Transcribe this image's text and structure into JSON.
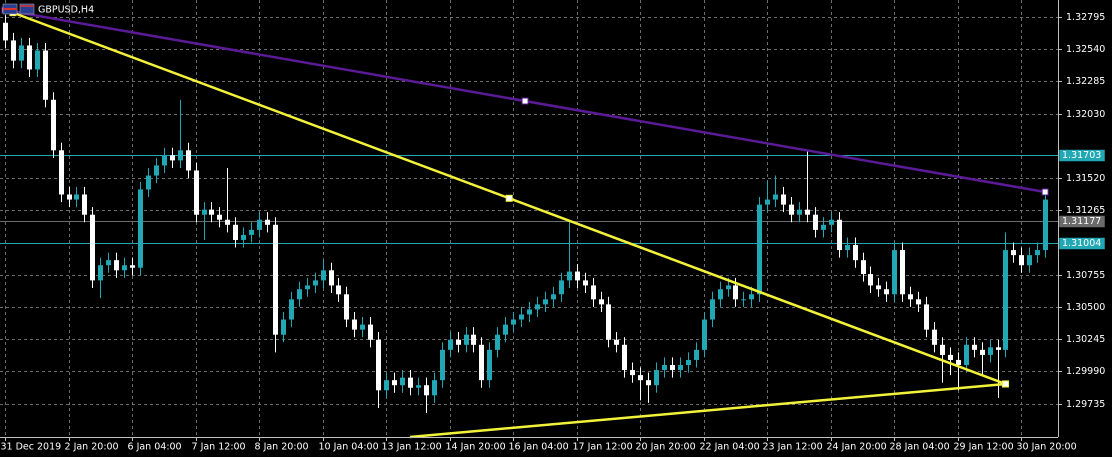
{
  "chart_data": {
    "type": "candlestick",
    "title": "GBPUSD,H4",
    "bull_color": "#22a7b4",
    "bear_color": "#ffffff",
    "grid": true,
    "ylim": [
      1.2947,
      1.3293
    ],
    "yticks": [
      1.32795,
      {
        "value": 1.3254,
        "label": "1.32540"
      },
      1.32285,
      {
        "value": 1.3203,
        "label": "1.32030"
      },
      {
        "value": 1.3152,
        "label": "1.31520"
      },
      1.31265,
      1.30755,
      {
        "value": 1.305,
        "label": "1.30500"
      },
      1.30245,
      {
        "value": 1.2999,
        "label": "1.29990"
      },
      1.29735
    ],
    "hlines": [
      {
        "value": 1.31703,
        "color": "#22a7b4"
      },
      {
        "value": 1.31177,
        "color": "#6b6b6b"
      },
      {
        "value": 1.31004,
        "color": "#22a7b4"
      }
    ],
    "trendlines": [
      {
        "color": "#5b1a96",
        "x": [
          0,
          131
        ],
        "y": [
          1.3285,
          1.3141
        ]
      },
      {
        "color": "#f2f23a",
        "x": [
          1,
          126
        ],
        "y": [
          1.3283,
          1.2989
        ]
      },
      {
        "color": "#f2f23a",
        "x": [
          51,
          126
        ],
        "y": [
          1.2947,
          1.2989
        ]
      }
    ],
    "categories": [
      "31 Dec 2019",
      null,
      null,
      null,
      null,
      null,
      null,
      null,
      "2 Jan 20:00",
      null,
      null,
      null,
      null,
      null,
      null,
      null,
      "6 Jan 04:00",
      null,
      null,
      null,
      null,
      null,
      null,
      null,
      "7 Jan 12:00",
      null,
      null,
      null,
      null,
      null,
      null,
      null,
      "8 Jan 20:00",
      null,
      null,
      null,
      null,
      null,
      null,
      null,
      "10 Jan 04:00",
      null,
      null,
      null,
      null,
      null,
      null,
      null,
      "13 Jan 12:00",
      null,
      null,
      null,
      null,
      null,
      null,
      null,
      "14 Jan 20:00",
      null,
      null,
      null,
      null,
      null,
      null,
      null,
      "16 Jan 04:00",
      null,
      null,
      null,
      null,
      null,
      null,
      null,
      "17 Jan 12:00",
      null,
      null,
      null,
      null,
      null,
      null,
      null,
      "20 Jan 20:00",
      null,
      null,
      null,
      null,
      null,
      null,
      null,
      "22 Jan 04:00",
      null,
      null,
      null,
      null,
      null,
      null,
      null,
      "23 Jan 12:00",
      null,
      null,
      null,
      null,
      null,
      null,
      null,
      "24 Jan 20:00",
      null,
      null,
      null,
      null,
      null,
      null,
      null,
      "28 Jan 04:00",
      null,
      null,
      null,
      null,
      null,
      null,
      null,
      "29 Jan 12:00",
      null,
      null,
      null,
      null,
      null,
      null,
      null,
      "30 Jan 20:00",
      null,
      null,
      null
    ],
    "ohlc": [
      [
        1.3275,
        1.3281,
        1.3255,
        1.3261
      ],
      [
        1.3261,
        1.3267,
        1.3239,
        1.3245
      ],
      [
        1.3245,
        1.3263,
        1.3239,
        1.3257
      ],
      [
        1.3257,
        1.3263,
        1.3232,
        1.3238
      ],
      [
        1.3238,
        1.3259,
        1.3232,
        1.3253
      ],
      [
        1.3253,
        1.3259,
        1.3208,
        1.3214
      ],
      [
        1.3214,
        1.322,
        1.3168,
        1.3174
      ],
      [
        1.3174,
        1.318,
        1.3133,
        1.3139
      ],
      [
        1.3139,
        1.3145,
        1.3129,
        1.3135
      ],
      [
        1.3135,
        1.3145,
        1.3129,
        1.3139
      ],
      [
        1.3139,
        1.3145,
        1.3117,
        1.3123
      ],
      [
        1.3123,
        1.3129,
        1.3065,
        1.3071
      ],
      [
        1.3071,
        1.3089,
        1.3057,
        1.3083
      ],
      [
        1.3083,
        1.3093,
        1.3077,
        1.3087
      ],
      [
        1.3087,
        1.3093,
        1.3073,
        1.3079
      ],
      [
        1.3079,
        1.3089,
        1.3073,
        1.3083
      ],
      [
        1.3083,
        1.3089,
        1.3075,
        1.3081
      ],
      [
        1.3081,
        1.3149,
        1.3075,
        1.3143
      ],
      [
        1.3143,
        1.316,
        1.3137,
        1.3154
      ],
      [
        1.3154,
        1.3168,
        1.3148,
        1.3162
      ],
      [
        1.3162,
        1.3176,
        1.3156,
        1.317
      ],
      [
        1.317,
        1.3176,
        1.316,
        1.3166
      ],
      [
        1.3166,
        1.3214,
        1.316,
        1.3174
      ],
      [
        1.3174,
        1.318,
        1.3152,
        1.3158
      ],
      [
        1.3158,
        1.3164,
        1.3117,
        1.3123
      ],
      [
        1.3123,
        1.3133,
        1.3103,
        1.3127
      ],
      [
        1.3127,
        1.3133,
        1.3117,
        1.3123
      ],
      [
        1.3123,
        1.3129,
        1.3113,
        1.3119
      ],
      [
        1.3119,
        1.316,
        1.3109,
        1.3115
      ],
      [
        1.3115,
        1.3121,
        1.3097,
        1.3103
      ],
      [
        1.3103,
        1.3113,
        1.3097,
        1.3107
      ],
      [
        1.3107,
        1.3117,
        1.3101,
        1.3111
      ],
      [
        1.3111,
        1.3125,
        1.3105,
        1.3119
      ],
      [
        1.3119,
        1.3125,
        1.3109,
        1.3115
      ],
      [
        1.3115,
        1.3121,
        1.3014,
        1.3028
      ],
      [
        1.3028,
        1.3046,
        1.3022,
        1.304
      ],
      [
        1.304,
        1.3062,
        1.3034,
        1.3056
      ],
      [
        1.3056,
        1.307,
        1.305,
        1.3064
      ],
      [
        1.3064,
        1.3073,
        1.3058,
        1.3067
      ],
      [
        1.3067,
        1.3077,
        1.3061,
        1.3071
      ],
      [
        1.3071,
        1.3087,
        1.3065,
        1.3079
      ],
      [
        1.3079,
        1.3085,
        1.3061,
        1.3067
      ],
      [
        1.3067,
        1.3073,
        1.3054,
        1.306
      ],
      [
        1.306,
        1.3066,
        1.3034,
        1.304
      ],
      [
        1.304,
        1.3046,
        1.3026,
        1.3032
      ],
      [
        1.3032,
        1.3042,
        1.3026,
        1.3036
      ],
      [
        1.3036,
        1.3042,
        1.3018,
        1.3024
      ],
      [
        1.3024,
        1.303,
        1.297,
        1.2984
      ],
      [
        1.2984,
        1.2998,
        1.2978,
        1.2992
      ],
      [
        1.2992,
        1.2998,
        1.2982,
        1.2988
      ],
      [
        1.2988,
        1.3,
        1.2982,
        1.2994
      ],
      [
        1.2994,
        1.3,
        1.298,
        1.2986
      ],
      [
        1.2986,
        1.2994,
        1.298,
        1.2988
      ],
      [
        1.2988,
        1.2994,
        1.2966,
        1.298
      ],
      [
        1.298,
        1.2998,
        1.2974,
        1.2992
      ],
      [
        1.2992,
        1.3022,
        1.2986,
        1.3016
      ],
      [
        1.3016,
        1.303,
        1.301,
        1.3024
      ],
      [
        1.3024,
        1.303,
        1.3014,
        1.302
      ],
      [
        1.302,
        1.3034,
        1.3014,
        1.3028
      ],
      [
        1.3028,
        1.3034,
        1.3014,
        1.302
      ],
      [
        1.302,
        1.3026,
        1.2986,
        1.2992
      ],
      [
        1.2992,
        1.3022,
        1.2986,
        1.3016
      ],
      [
        1.3016,
        1.3034,
        1.301,
        1.3028
      ],
      [
        1.3028,
        1.3042,
        1.3022,
        1.3036
      ],
      [
        1.3036,
        1.3046,
        1.303,
        1.304
      ],
      [
        1.304,
        1.305,
        1.3034,
        1.3044
      ],
      [
        1.3044,
        1.3054,
        1.3038,
        1.3048
      ],
      [
        1.3048,
        1.3058,
        1.3042,
        1.3052
      ],
      [
        1.3052,
        1.3062,
        1.3046,
        1.3056
      ],
      [
        1.3056,
        1.3066,
        1.305,
        1.306
      ],
      [
        1.306,
        1.3077,
        1.3054,
        1.3071
      ],
      [
        1.3071,
        1.3119,
        1.3065,
        1.3078
      ],
      [
        1.3078,
        1.3084,
        1.3065,
        1.3071
      ],
      [
        1.3071,
        1.3077,
        1.3061,
        1.3067
      ],
      [
        1.3067,
        1.3073,
        1.305,
        1.3056
      ],
      [
        1.3056,
        1.3062,
        1.3046,
        1.3052
      ],
      [
        1.3052,
        1.3058,
        1.3018,
        1.3024
      ],
      [
        1.3024,
        1.303,
        1.3014,
        1.302
      ],
      [
        1.302,
        1.3026,
        1.2994,
        1.3
      ],
      [
        1.3,
        1.3006,
        1.299,
        1.2996
      ],
      [
        1.2996,
        1.3002,
        1.2976,
        1.2992
      ],
      [
        1.2992,
        1.2998,
        1.2974,
        1.2988
      ],
      [
        1.2988,
        1.3006,
        1.2982,
        1.3
      ],
      [
        1.3,
        1.301,
        1.2994,
        1.3004
      ],
      [
        1.3004,
        1.301,
        1.2994,
        1.3
      ],
      [
        1.3,
        1.301,
        1.2994,
        1.3004
      ],
      [
        1.3004,
        1.3014,
        1.2998,
        1.3008
      ],
      [
        1.3008,
        1.3022,
        1.3002,
        1.3016
      ],
      [
        1.3016,
        1.3046,
        1.301,
        1.304
      ],
      [
        1.304,
        1.3062,
        1.3034,
        1.3056
      ],
      [
        1.3056,
        1.307,
        1.305,
        1.3064
      ],
      [
        1.3064,
        1.3073,
        1.3058,
        1.3067
      ],
      [
        1.3067,
        1.3073,
        1.305,
        1.3056
      ],
      [
        1.3056,
        1.3062,
        1.305,
        1.3056
      ],
      [
        1.3056,
        1.3066,
        1.305,
        1.306
      ],
      [
        1.306,
        1.3137,
        1.3054,
        1.3131
      ],
      [
        1.3131,
        1.315,
        1.3125,
        1.3135
      ],
      [
        1.3135,
        1.3154,
        1.3129,
        1.3139
      ],
      [
        1.3139,
        1.3145,
        1.3125,
        1.3131
      ],
      [
        1.3131,
        1.3137,
        1.3117,
        1.3123
      ],
      [
        1.3123,
        1.3133,
        1.3117,
        1.3127
      ],
      [
        1.3127,
        1.3174,
        1.3117,
        1.3123
      ],
      [
        1.3123,
        1.3129,
        1.3105,
        1.3111
      ],
      [
        1.3111,
        1.3121,
        1.3105,
        1.3115
      ],
      [
        1.3115,
        1.3125,
        1.3109,
        1.3119
      ],
      [
        1.3119,
        1.3125,
        1.3089,
        1.3095
      ],
      [
        1.3095,
        1.3105,
        1.3089,
        1.3099
      ],
      [
        1.3099,
        1.3105,
        1.3081,
        1.3087
      ],
      [
        1.3087,
        1.3093,
        1.307,
        1.3076
      ],
      [
        1.3076,
        1.3082,
        1.3061,
        1.3067
      ],
      [
        1.3067,
        1.3073,
        1.3058,
        1.3064
      ],
      [
        1.3064,
        1.307,
        1.3054,
        1.306
      ],
      [
        1.306,
        1.3101,
        1.3054,
        1.3095
      ],
      [
        1.3095,
        1.3101,
        1.3054,
        1.306
      ],
      [
        1.306,
        1.3066,
        1.305,
        1.3056
      ],
      [
        1.3056,
        1.3062,
        1.3046,
        1.3052
      ],
      [
        1.3052,
        1.3058,
        1.3026,
        1.3032
      ],
      [
        1.3032,
        1.3038,
        1.3014,
        1.302
      ],
      [
        1.302,
        1.3026,
        1.299,
        1.3012
      ],
      [
        1.3012,
        1.3018,
        1.2996,
        1.3008
      ],
      [
        1.3008,
        1.3014,
        1.2984,
        1.3004
      ],
      [
        1.3004,
        1.3026,
        1.2998,
        1.302
      ],
      [
        1.302,
        1.3026,
        1.301,
        1.3016
      ],
      [
        1.3016,
        1.3022,
        1.2996,
        1.3012
      ],
      [
        1.3012,
        1.3024,
        1.3006,
        1.3018
      ],
      [
        1.3018,
        1.3024,
        1.2978,
        1.3016
      ],
      [
        1.3016,
        1.3109,
        1.301,
        1.3095
      ],
      [
        1.3095,
        1.3101,
        1.3085,
        1.3091
      ],
      [
        1.3091,
        1.3097,
        1.3077,
        1.3083
      ],
      [
        1.3083,
        1.3097,
        1.3077,
        1.3091
      ],
      [
        1.3091,
        1.3101,
        1.3085,
        1.3095
      ],
      [
        1.3095,
        1.3143,
        1.3089,
        1.3135
      ]
    ]
  }
}
